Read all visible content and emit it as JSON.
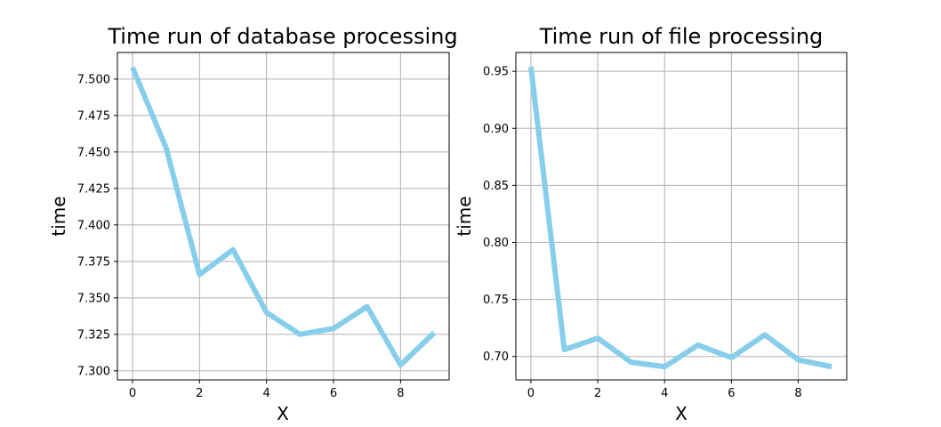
{
  "chart_data": [
    {
      "type": "line",
      "title": "Time run of database processing",
      "xlabel": "X",
      "ylabel": "time",
      "x": [
        0,
        1,
        2,
        3,
        4,
        5,
        6,
        7,
        8,
        9
      ],
      "series": [
        {
          "values": [
            7.508,
            7.453,
            7.366,
            7.383,
            7.34,
            7.325,
            7.329,
            7.344,
            7.304,
            7.326
          ],
          "color": "#87ceeb"
        }
      ],
      "xlim": [
        -0.45,
        9.45
      ],
      "ylim": [
        7.2938,
        7.5182
      ],
      "xticks": [
        0,
        2,
        4,
        6,
        8
      ],
      "xtick_labels": [
        "0",
        "2",
        "4",
        "6",
        "8"
      ],
      "yticks": [
        7.3,
        7.325,
        7.35,
        7.375,
        7.4,
        7.425,
        7.45,
        7.475,
        7.5
      ],
      "ytick_labels": [
        "7.300",
        "7.325",
        "7.350",
        "7.375",
        "7.400",
        "7.425",
        "7.450",
        "7.475",
        "7.500"
      ],
      "grid": true
    },
    {
      "type": "line",
      "title": "Time run of file processing",
      "xlabel": "X",
      "ylabel": "time",
      "x": [
        0,
        1,
        2,
        3,
        4,
        5,
        6,
        7,
        8,
        9
      ],
      "series": [
        {
          "values": [
            0.954,
            0.706,
            0.716,
            0.695,
            0.691,
            0.71,
            0.699,
            0.719,
            0.697,
            0.691
          ],
          "color": "#87ceeb"
        }
      ],
      "xlim": [
        -0.45,
        9.45
      ],
      "ylim": [
        0.6795,
        0.9665
      ],
      "xticks": [
        0,
        2,
        4,
        6,
        8
      ],
      "xtick_labels": [
        "0",
        "2",
        "4",
        "6",
        "8"
      ],
      "yticks": [
        0.7,
        0.75,
        0.8,
        0.85,
        0.9,
        0.95
      ],
      "ytick_labels": [
        "0.70",
        "0.75",
        "0.80",
        "0.85",
        "0.90",
        "0.95"
      ],
      "grid": true
    }
  ]
}
